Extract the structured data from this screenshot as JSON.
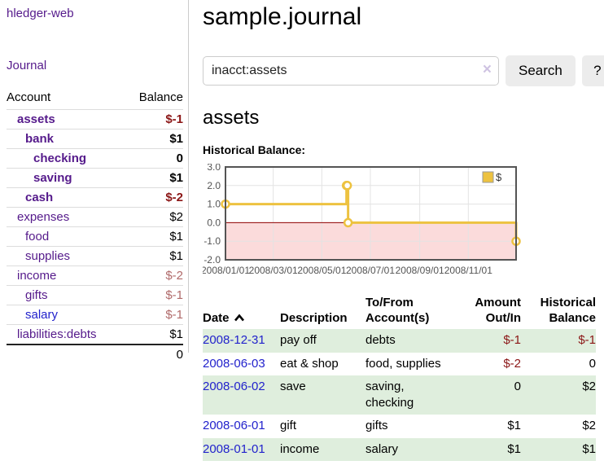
{
  "sidebar": {
    "brand": "hledger-web",
    "journal_link": "Journal",
    "accounts_table": {
      "headers": [
        "Account",
        "Balance"
      ],
      "rows": [
        {
          "name": "assets",
          "indent": 1,
          "bold": true,
          "balance": "$-1",
          "negative": "strong"
        },
        {
          "name": "bank",
          "indent": 2,
          "bold": true,
          "balance": "$1"
        },
        {
          "name": "checking",
          "indent": 3,
          "bold": true,
          "balance": "0"
        },
        {
          "name": "saving",
          "indent": 3,
          "bold": true,
          "balance": "$1"
        },
        {
          "name": "cash",
          "indent": 2,
          "bold": true,
          "balance": "$-2",
          "negative": "strong"
        },
        {
          "name": "expenses",
          "indent": 1,
          "bold": false,
          "balance": "$2"
        },
        {
          "name": "food",
          "indent": 2,
          "bold": false,
          "balance": "$1"
        },
        {
          "name": "supplies",
          "indent": 2,
          "bold": false,
          "balance": "$1"
        },
        {
          "name": "income",
          "indent": 1,
          "bold": false,
          "balance": "$-2",
          "negative": "soft"
        },
        {
          "name": "gifts",
          "indent": 2,
          "bold": false,
          "balance": "$-1",
          "negative": "soft"
        },
        {
          "name": "salary",
          "indent": 2,
          "bold": false,
          "balance": "$-1",
          "negative": "soft",
          "link": "blue"
        },
        {
          "name": "liabilities:debts",
          "indent": 1,
          "bold": false,
          "balance": "$1"
        }
      ],
      "total": "0"
    }
  },
  "header": {
    "title": "sample.journal"
  },
  "search": {
    "value": "inacct:assets",
    "clear_icon": "×",
    "button_label": "Search",
    "help_label": "?"
  },
  "main": {
    "heading": "assets",
    "chart_label": "Historical Balance:"
  },
  "chart_data": {
    "type": "step-line",
    "title": "Historical Balance:",
    "x_domain": [
      "2008-01-01",
      "2008-12-31"
    ],
    "ylim": [
      -2,
      3
    ],
    "y_ticks": [
      3.0,
      2.0,
      1.0,
      0.0,
      -1.0,
      -2.0
    ],
    "x_tick_labels": [
      "2008/01/01",
      "2008/03/01",
      "2008/05/01",
      "2008/07/01",
      "2008/09/01",
      "2008/11/01"
    ],
    "series": [
      {
        "name": "$",
        "color": "#edc240",
        "points": [
          [
            "2008-01-01",
            1
          ],
          [
            "2008-06-01",
            2
          ],
          [
            "2008-06-02",
            2
          ],
          [
            "2008-06-03",
            0
          ],
          [
            "2008-12-31",
            -1
          ]
        ]
      }
    ],
    "legend_position": "top-right",
    "grid": true,
    "negative_region_color": "#fbdbdb",
    "zero_line_color": "#900000",
    "border_color": "#545454"
  },
  "register": {
    "headers": [
      {
        "line1": "Date",
        "line2": "",
        "sort": "asc"
      },
      {
        "line1": "Description",
        "line2": ""
      },
      {
        "line1": "To/From",
        "line2": "Account(s)"
      },
      {
        "line1": "Amount",
        "line2": "Out/In"
      },
      {
        "line1": "Historical",
        "line2": "Balance"
      }
    ],
    "rows": [
      {
        "date": "2008-12-31",
        "description": "pay off",
        "accounts": "debts",
        "amount": "$-1",
        "amount_negative": true,
        "balance": "$-1",
        "balance_negative": true
      },
      {
        "date": "2008-06-03",
        "description": "eat & shop",
        "accounts": "food, supplies",
        "amount": "$-2",
        "amount_negative": true,
        "balance": "0",
        "balance_negative": false
      },
      {
        "date": "2008-06-02",
        "description": "save",
        "accounts": "saving, checking",
        "amount": "0",
        "amount_negative": false,
        "balance": "$2",
        "balance_negative": false
      },
      {
        "date": "2008-06-01",
        "description": "gift",
        "accounts": "gifts",
        "amount": "$1",
        "amount_negative": false,
        "balance": "$2",
        "balance_negative": false
      },
      {
        "date": "2008-01-01",
        "description": "income",
        "accounts": "salary",
        "amount": "$1",
        "amount_negative": false,
        "balance": "$1",
        "balance_negative": false
      }
    ]
  },
  "colors": {
    "accent_purple": "#551a8b",
    "link_blue": "#2222cc",
    "negative_strong": "#8b1616",
    "negative_soft": "#b06a6a",
    "row_stripe_green": "#dfeedd",
    "chart_gold": "#edc240",
    "chart_negative_fill": "#fbdbdb",
    "chart_zero_line": "#900000"
  }
}
